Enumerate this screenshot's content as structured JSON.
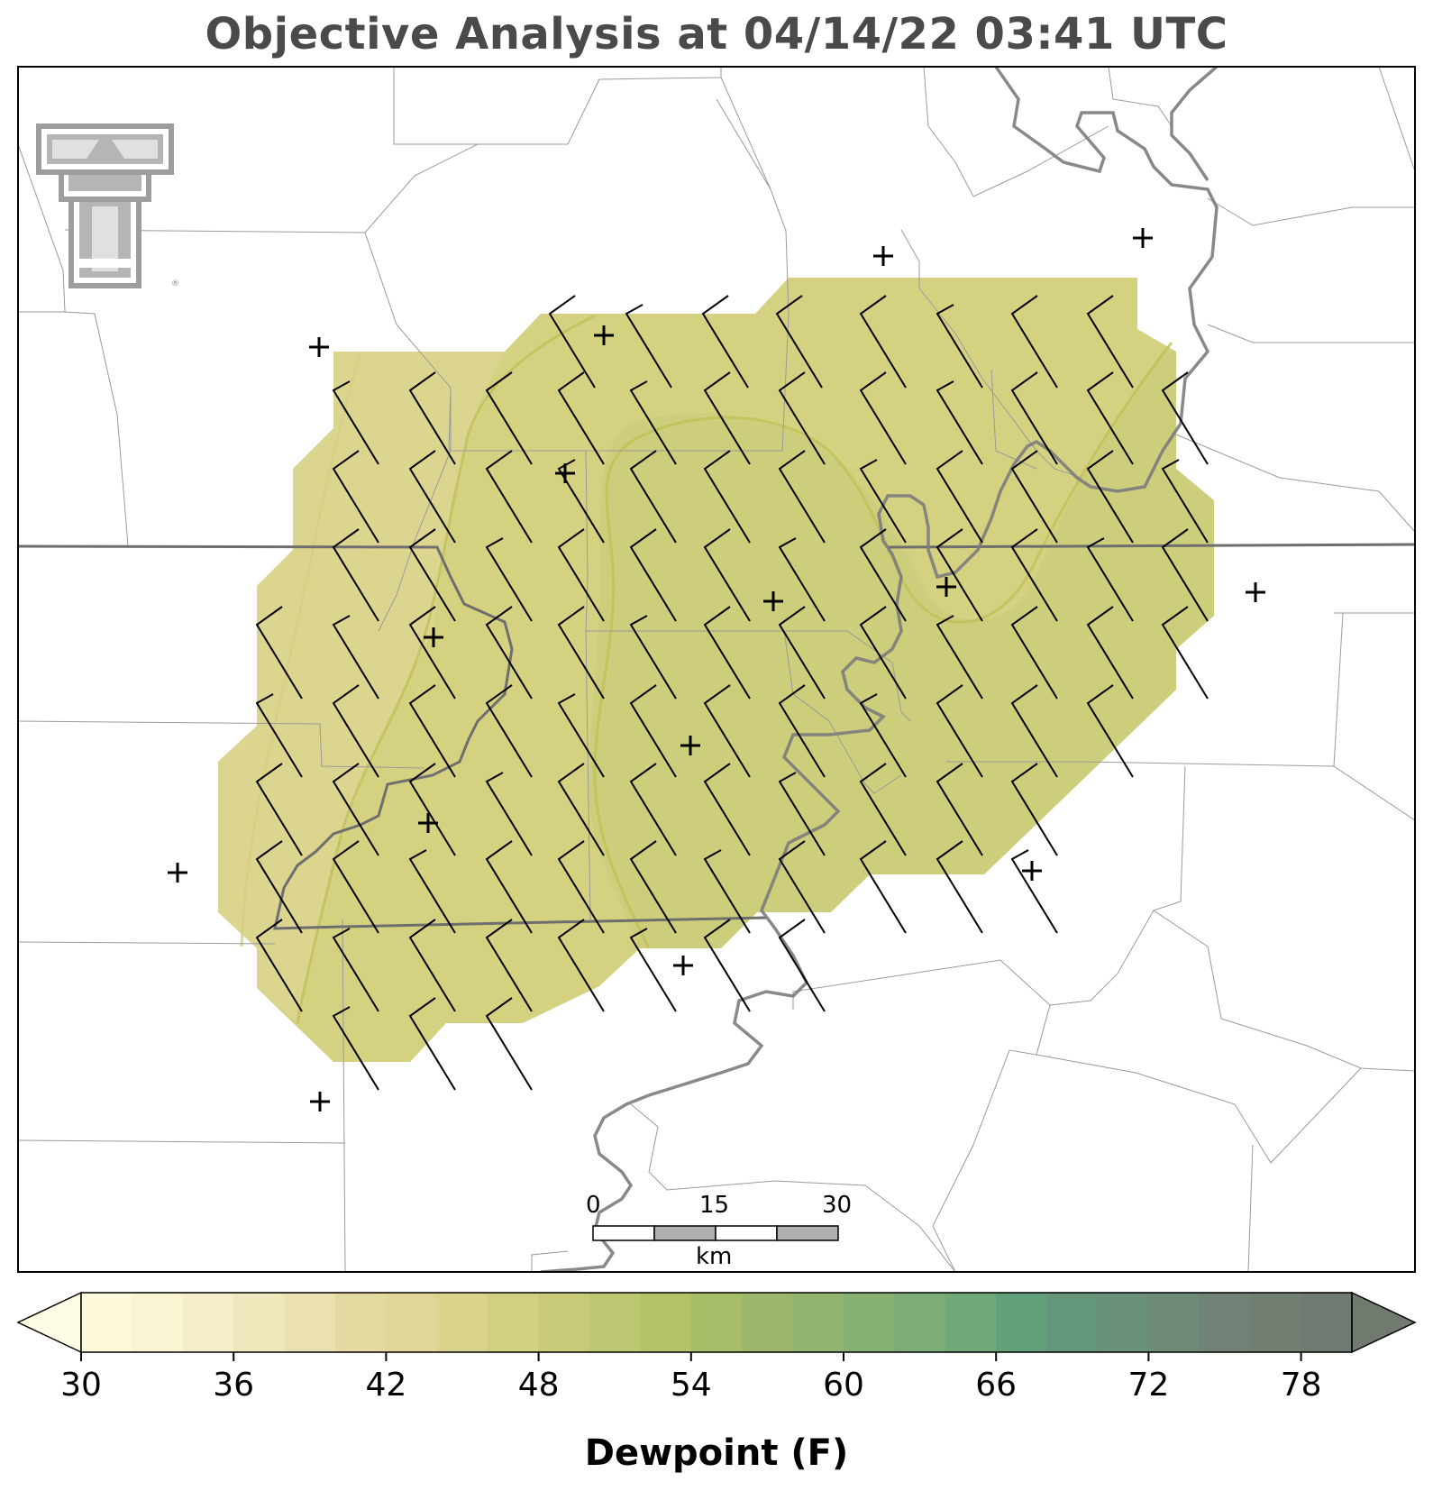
{
  "title": "Objective Analysis at 04/14/22 03:41 UTC",
  "colorbar": {
    "label": "Dewpoint (F)",
    "min": 30,
    "max": 80,
    "step": 2,
    "ticks": [
      "30",
      "36",
      "42",
      "48",
      "54",
      "60",
      "66",
      "72",
      "78"
    ],
    "colors": [
      "#fdfadc",
      "#f9f4d3",
      "#f5eeca",
      "#f0e7bd",
      "#ebe0b0",
      "#e5d9a2",
      "#e0d697",
      "#dad38c",
      "#d1d080",
      "#c7cb78",
      "#bdc670",
      "#b3c266",
      "#a8bd68",
      "#9db86c",
      "#92b46f",
      "#87b173",
      "#7cad76",
      "#70a878",
      "#62a07a",
      "#63967b",
      "#6a8f7b",
      "#6e8a79",
      "#718377",
      "#737e73",
      "#717a70"
    ],
    "under_color": "#fefbe3",
    "over_color": "#707a6e"
  },
  "scale_bar": {
    "ticks": [
      "0",
      "15",
      "30"
    ],
    "unit": "km"
  },
  "logo": {
    "name": "texas-tech-double-t"
  },
  "field": {
    "fill_light": "#ded692",
    "fill_mid": "#d4d281",
    "fill_dark": "#c9cc78",
    "contour": "#c2c158"
  }
}
